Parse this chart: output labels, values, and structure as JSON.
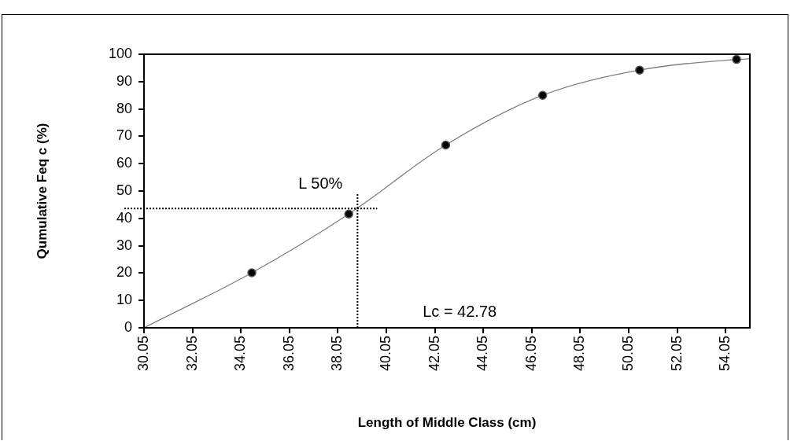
{
  "chart_data": {
    "type": "scatter",
    "xlabel": "Length of Middle Class (cm)",
    "ylabel": "Qumulative Feq c (%)",
    "xlim": [
      30.05,
      55.05
    ],
    "xticks": [
      30.05,
      32.05,
      34.05,
      36.05,
      38.05,
      40.05,
      42.05,
      44.05,
      46.05,
      48.05,
      50.05,
      52.05,
      54.05
    ],
    "ylim": [
      0,
      100
    ],
    "yticks": [
      0,
      10,
      20,
      30,
      40,
      50,
      60,
      70,
      80,
      90,
      100
    ],
    "grid": false,
    "legend": false,
    "series": [
      {
        "type": "line",
        "color": "#808080",
        "marker": "none",
        "x": [
          30.05,
          34.5,
          38.5,
          42.5,
          46.5,
          50.5,
          54.5,
          55.05
        ],
        "values": [
          0,
          20.1,
          41.6,
          66.8,
          85.0,
          94.2,
          98.1,
          98.3
        ]
      },
      {
        "type": "scatter",
        "color": "#000000",
        "marker": "circle",
        "x": [
          34.5,
          38.5,
          42.5,
          46.5,
          50.5,
          54.5
        ],
        "values": [
          20.1,
          41.6,
          66.8,
          85.0,
          94.2,
          98.1
        ]
      }
    ],
    "ref_lines": [
      {
        "axis": "y",
        "value": 43.6,
        "line_style": "dotted",
        "color": "#000000"
      },
      {
        "axis": "x",
        "value": 38.86,
        "line_style": "dotted",
        "color": "#000000"
      }
    ],
    "annotations": [
      "L 50%",
      "Lc = 42.78"
    ]
  }
}
